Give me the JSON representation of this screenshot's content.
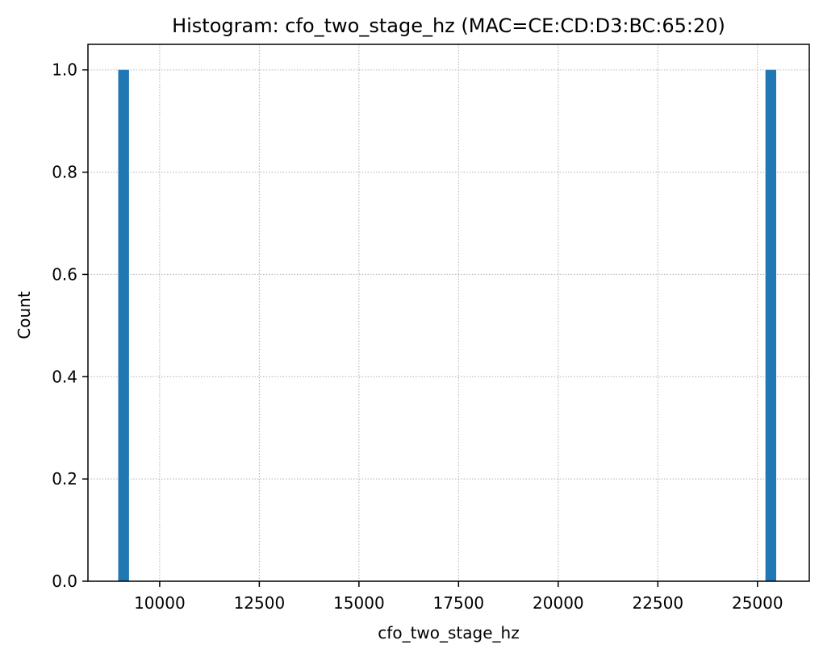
{
  "chart_data": {
    "type": "bar",
    "title": "Histogram: cfo_two_stage_hz (MAC=CE:CD:D3:BC:65:20)",
    "xlabel": "cfo_two_stage_hz",
    "ylabel": "Count",
    "xlim": [
      8200,
      26300
    ],
    "ylim": [
      0,
      1.05
    ],
    "x_ticks": [
      10000,
      12500,
      15000,
      17500,
      20000,
      22500,
      25000
    ],
    "x_tick_labels": [
      "10000",
      "12500",
      "15000",
      "17500",
      "20000",
      "22500",
      "25000"
    ],
    "y_ticks": [
      0.0,
      0.2,
      0.4,
      0.6,
      0.8,
      1.0
    ],
    "y_tick_labels": [
      "0.0",
      "0.2",
      "0.4",
      "0.6",
      "0.8",
      "1.0"
    ],
    "grid": true,
    "bins": [
      {
        "x_start": 8960,
        "x_end": 9230,
        "count": 1
      },
      {
        "x_start": 25200,
        "x_end": 25470,
        "count": 1
      }
    ],
    "colors": {
      "bar": "#1f77b4",
      "grid": "#b0b0b0",
      "axes": "#000000"
    }
  }
}
